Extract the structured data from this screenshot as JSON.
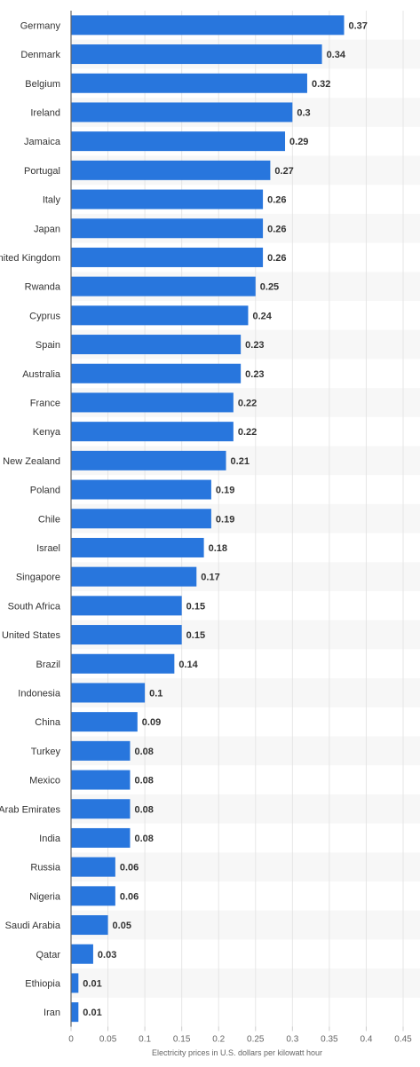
{
  "chart_data": {
    "type": "bar",
    "orientation": "horizontal",
    "categories": [
      "Germany",
      "Denmark",
      "Belgium",
      "Ireland",
      "Jamaica",
      "Portugal",
      "Italy",
      "Japan",
      "United Kingdom",
      "Rwanda",
      "Cyprus",
      "Spain",
      "Australia",
      "France",
      "Kenya",
      "New Zealand",
      "Poland",
      "Chile",
      "Israel",
      "Singapore",
      "South Africa",
      "United States",
      "Brazil",
      "Indonesia",
      "China",
      "Turkey",
      "Mexico",
      "United Arab Emirates",
      "India",
      "Russia",
      "Nigeria",
      "Saudi Arabia",
      "Qatar",
      "Ethiopia",
      "Iran"
    ],
    "values": [
      0.37,
      0.34,
      0.32,
      0.3,
      0.29,
      0.27,
      0.26,
      0.26,
      0.26,
      0.25,
      0.24,
      0.23,
      0.23,
      0.22,
      0.22,
      0.21,
      0.19,
      0.19,
      0.18,
      0.17,
      0.15,
      0.15,
      0.14,
      0.1,
      0.09,
      0.08,
      0.08,
      0.08,
      0.08,
      0.06,
      0.06,
      0.05,
      0.03,
      0.01,
      0.01
    ],
    "value_labels": [
      "0.37",
      "0.34",
      "0.32",
      "0.3",
      "0.29",
      "0.27",
      "0.26",
      "0.26",
      "0.26",
      "0.25",
      "0.24",
      "0.23",
      "0.23",
      "0.22",
      "0.22",
      "0.21",
      "0.19",
      "0.19",
      "0.18",
      "0.17",
      "0.15",
      "0.15",
      "0.14",
      "0.1",
      "0.09",
      "0.08",
      "0.08",
      "0.08",
      "0.08",
      "0.06",
      "0.06",
      "0.05",
      "0.03",
      "0.01",
      "0.01"
    ],
    "xlabel": "Electricity prices in U.S. dollars per kilowatt hour",
    "ylabel": "",
    "xlim": [
      0,
      0.45
    ],
    "xticks": [
      0,
      0.05,
      0.1,
      0.15,
      0.2,
      0.25,
      0.3,
      0.35,
      0.4,
      0.45
    ],
    "xtick_labels": [
      "0",
      "0.05",
      "0.1",
      "0.15",
      "0.2",
      "0.25",
      "0.3",
      "0.35",
      "0.4",
      "0.45"
    ],
    "grid": true,
    "alternating_row_bands": true,
    "colors": {
      "bar": "#2876dd",
      "band": "#f7f7f7",
      "grid": "#e6e6e6",
      "axis": "#666666",
      "value_text": "#333333",
      "category_text": "#333333",
      "tick_text": "#666666"
    }
  }
}
